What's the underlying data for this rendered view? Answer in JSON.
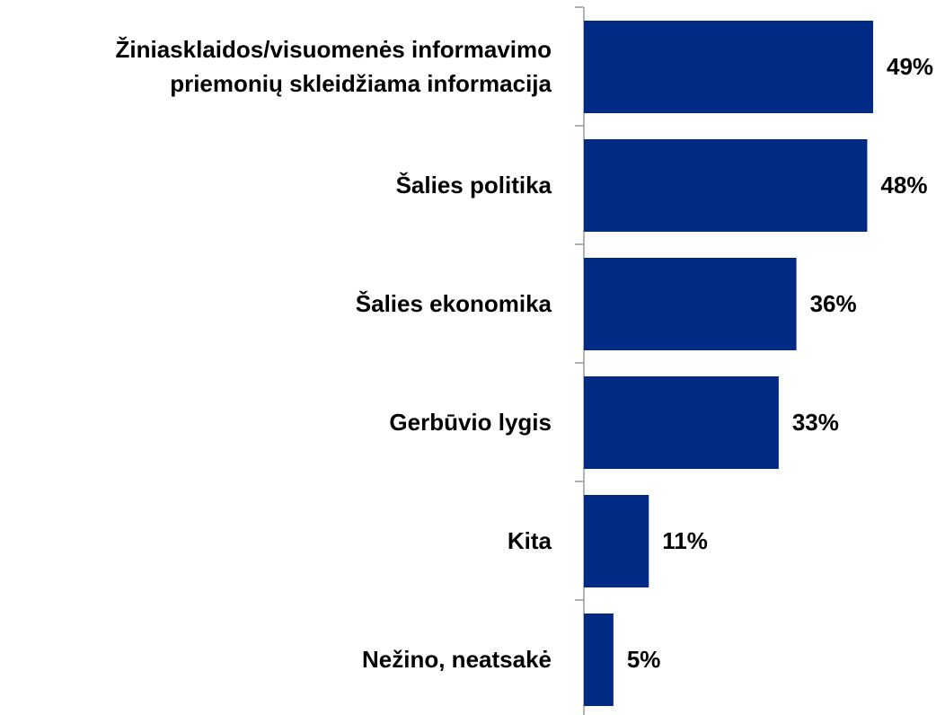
{
  "chart_data": {
    "type": "bar",
    "orientation": "horizontal",
    "categories": [
      "Žiniasklaidos/visuomenės informavimo priemonių skleidžiama informacija",
      "Šalies politika",
      "Šalies ekonomika",
      "Gerbūvio lygis",
      "Kita",
      "Nežino, neatsakė"
    ],
    "values": [
      49,
      48,
      36,
      33,
      11,
      5
    ],
    "value_labels": [
      "49%",
      "48%",
      "36%",
      "33%",
      "11%",
      "5%"
    ],
    "color": "#012a84"
  }
}
